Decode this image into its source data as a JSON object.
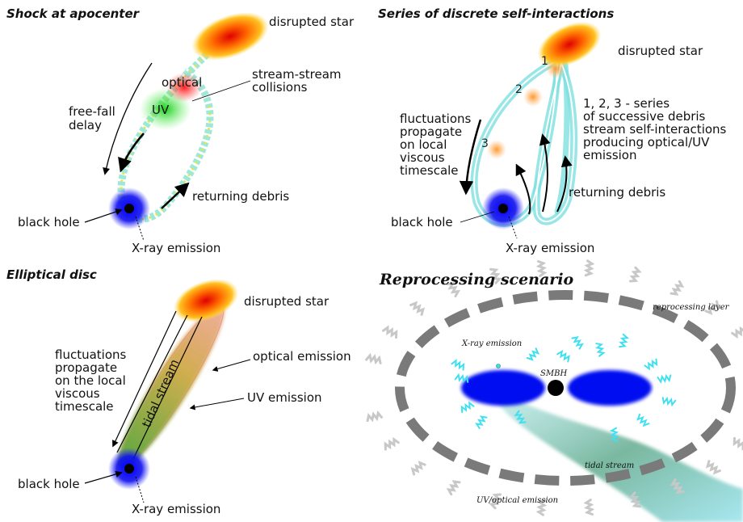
{
  "panels": [
    {
      "title": "Shock at apocenter",
      "labels": [
        {
          "lines": [
            "disrupted star"
          ]
        },
        {
          "lines": [
            "optical"
          ]
        },
        {
          "lines": [
            "stream-stream",
            "collisions"
          ]
        },
        {
          "lines": [
            "UV"
          ]
        },
        {
          "lines": [
            "free-fall",
            "delay"
          ]
        },
        {
          "lines": [
            "returning debris"
          ]
        },
        {
          "lines": [
            "black hole"
          ]
        },
        {
          "lines": [
            "X-ray emission"
          ]
        }
      ]
    },
    {
      "title": "Series of discrete self-interactions",
      "labels": [
        {
          "lines": [
            "disrupted star"
          ]
        },
        {
          "lines": [
            "1"
          ]
        },
        {
          "lines": [
            "2"
          ]
        },
        {
          "lines": [
            "3"
          ]
        },
        {
          "lines": [
            "fluctuations",
            "propagate",
            "on local",
            "viscous",
            "timescale"
          ]
        },
        {
          "lines": [
            "1, 2, 3 - series",
            "of successive debris",
            "stream self-interactions",
            "producing optical/UV",
            "emission"
          ]
        },
        {
          "lines": [
            "returning debris"
          ]
        },
        {
          "lines": [
            "black hole"
          ]
        },
        {
          "lines": [
            "X-ray emission"
          ]
        }
      ]
    },
    {
      "title": "Elliptical disc",
      "labels": [
        {
          "lines": [
            "disrupted star"
          ]
        },
        {
          "lines": [
            "fluctuations",
            "propagate",
            "on the local",
            "viscous",
            "timescale"
          ]
        },
        {
          "lines": [
            "tidal stream"
          ]
        },
        {
          "lines": [
            "optical emission"
          ]
        },
        {
          "lines": [
            "UV emission"
          ]
        },
        {
          "lines": [
            "black hole"
          ]
        },
        {
          "lines": [
            "X-ray emission"
          ]
        }
      ]
    },
    {
      "title": "Reprocessing scenario",
      "labels": [
        {
          "lines": [
            "reprocessing layer"
          ]
        },
        {
          "lines": [
            "X-ray emission"
          ]
        },
        {
          "lines": [
            "SMBH"
          ]
        },
        {
          "lines": [
            "tidal stream"
          ]
        },
        {
          "lines": [
            "UV/optical emission"
          ]
        }
      ]
    }
  ]
}
